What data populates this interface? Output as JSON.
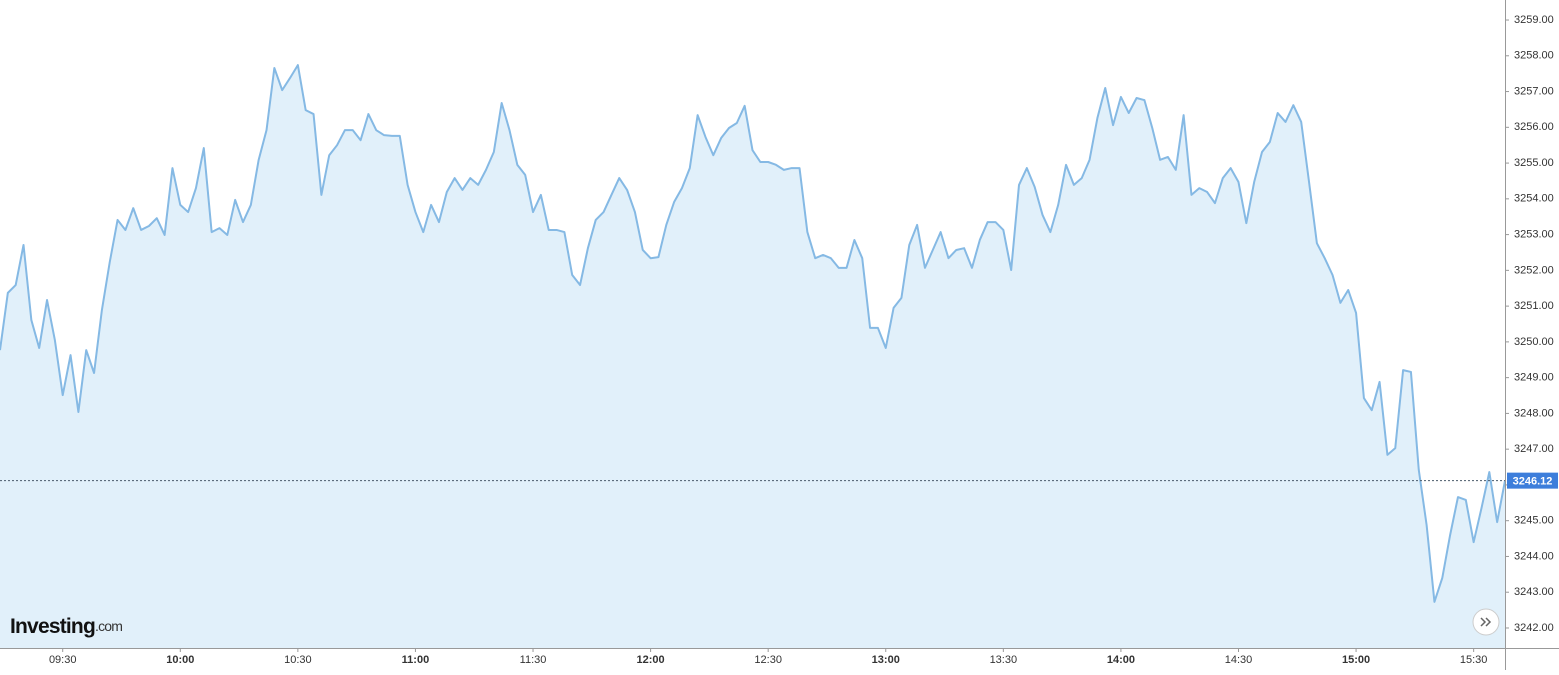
{
  "chart_data": {
    "type": "area",
    "logo": {
      "name": "Investing",
      "suffix": ".com"
    },
    "x": [
      "09:14",
      "09:16",
      "09:18",
      "09:20",
      "09:22",
      "09:24",
      "09:26",
      "09:28",
      "09:30",
      "09:32",
      "09:34",
      "09:36",
      "09:38",
      "09:40",
      "09:42",
      "09:44",
      "09:46",
      "09:48",
      "09:50",
      "09:52",
      "09:54",
      "09:56",
      "09:58",
      "10:00",
      "10:02",
      "10:04",
      "10:06",
      "10:08",
      "10:10",
      "10:12",
      "10:14",
      "10:16",
      "10:18",
      "10:20",
      "10:22",
      "10:24",
      "10:26",
      "10:28",
      "10:30",
      "10:32",
      "10:34",
      "10:36",
      "10:38",
      "10:40",
      "10:42",
      "10:44",
      "10:46",
      "10:48",
      "10:50",
      "10:52",
      "10:54",
      "10:56",
      "10:58",
      "11:00",
      "11:02",
      "11:04",
      "11:06",
      "11:08",
      "11:10",
      "11:12",
      "11:14",
      "11:16",
      "11:18",
      "11:20",
      "11:22",
      "11:24",
      "11:26",
      "11:28",
      "11:30",
      "11:32",
      "11:34",
      "11:36",
      "11:38",
      "11:40",
      "11:42",
      "11:44",
      "11:46",
      "11:48",
      "11:50",
      "11:52",
      "11:54",
      "11:56",
      "11:58",
      "12:00",
      "12:02",
      "12:04",
      "12:06",
      "12:08",
      "12:10",
      "12:12",
      "12:14",
      "12:16",
      "12:18",
      "12:20",
      "12:22",
      "12:24",
      "12:26",
      "12:28",
      "12:30",
      "12:32",
      "12:34",
      "12:36",
      "12:38",
      "12:40",
      "12:42",
      "12:44",
      "12:46",
      "12:48",
      "12:50",
      "12:52",
      "12:54",
      "12:56",
      "12:58",
      "13:00",
      "13:02",
      "13:04",
      "13:06",
      "13:08",
      "13:10",
      "13:12",
      "13:14",
      "13:16",
      "13:18",
      "13:20",
      "13:22",
      "13:24",
      "13:26",
      "13:28",
      "13:30",
      "13:32",
      "13:34",
      "13:36",
      "13:38",
      "13:40",
      "13:42",
      "13:44",
      "13:46",
      "13:48",
      "13:50",
      "13:52",
      "13:54",
      "13:56",
      "13:58",
      "14:00",
      "14:02",
      "14:04",
      "14:06",
      "14:08",
      "14:10",
      "14:12",
      "14:14",
      "14:16",
      "14:18",
      "14:20",
      "14:22",
      "14:24",
      "14:26",
      "14:28",
      "14:30",
      "14:32",
      "14:34",
      "14:36",
      "14:38",
      "14:40",
      "14:42",
      "14:44",
      "14:46",
      "14:48",
      "14:50",
      "14:52",
      "14:54",
      "14:56",
      "14:58",
      "15:00",
      "15:02",
      "15:04",
      "15:06",
      "15:08",
      "15:10",
      "15:12",
      "15:14",
      "15:16",
      "15:18",
      "15:20",
      "15:22",
      "15:24",
      "15:26",
      "15:28",
      "15:30",
      "15:32",
      "15:34",
      "15:36",
      "15:38"
    ],
    "values": [
      3249.77,
      3251.37,
      3251.59,
      3252.71,
      3250.61,
      3249.83,
      3251.17,
      3250.05,
      3248.51,
      3249.63,
      3248.04,
      3249.77,
      3249.13,
      3250.89,
      3252.23,
      3253.41,
      3253.13,
      3253.74,
      3253.13,
      3253.24,
      3253.46,
      3252.99,
      3254.86,
      3253.83,
      3253.63,
      3254.3,
      3255.42,
      3253.07,
      3253.18,
      3252.99,
      3253.97,
      3253.35,
      3253.83,
      3255.09,
      3255.92,
      3257.66,
      3257.04,
      3257.38,
      3257.74,
      3256.48,
      3256.37,
      3254.11,
      3255.22,
      3255.5,
      3255.92,
      3255.92,
      3255.64,
      3256.37,
      3255.92,
      3255.78,
      3255.76,
      3255.76,
      3254.39,
      3253.63,
      3253.07,
      3253.83,
      3253.35,
      3254.19,
      3254.58,
      3254.25,
      3254.58,
      3254.39,
      3254.81,
      3255.31,
      3256.68,
      3255.92,
      3254.95,
      3254.67,
      3253.63,
      3254.11,
      3253.13,
      3253.13,
      3253.07,
      3251.87,
      3251.59,
      3252.62,
      3253.41,
      3253.63,
      3254.11,
      3254.58,
      3254.25,
      3253.63,
      3252.57,
      3252.34,
      3252.37,
      3253.27,
      3253.91,
      3254.3,
      3254.86,
      3256.34,
      3255.73,
      3255.22,
      3255.7,
      3255.98,
      3256.12,
      3256.6,
      3255.36,
      3255.03,
      3255.03,
      3254.95,
      3254.81,
      3254.86,
      3254.86,
      3253.07,
      3252.34,
      3252.43,
      3252.34,
      3252.07,
      3252.07,
      3252.85,
      3252.34,
      3250.39,
      3250.39,
      3249.83,
      3250.95,
      3251.23,
      3252.71,
      3253.27,
      3252.07,
      3252.57,
      3253.07,
      3252.34,
      3252.57,
      3252.62,
      3252.07,
      3252.85,
      3253.35,
      3253.35,
      3253.13,
      3252.01,
      3254.39,
      3254.86,
      3254.33,
      3253.55,
      3253.07,
      3253.83,
      3254.95,
      3254.39,
      3254.58,
      3255.09,
      3256.26,
      3257.1,
      3256.06,
      3256.85,
      3256.4,
      3256.82,
      3256.76,
      3255.98,
      3255.09,
      3255.17,
      3254.81,
      3256.34,
      3254.11,
      3254.3,
      3254.19,
      3253.88,
      3254.58,
      3254.86,
      3254.47,
      3253.32,
      3254.47,
      3255.31,
      3255.59,
      3256.4,
      3256.15,
      3256.62,
      3256.15,
      3254.47,
      3252.76,
      3252.34,
      3251.87,
      3251.09,
      3251.45,
      3250.81,
      3248.43,
      3248.09,
      3248.88,
      3246.84,
      3247.03,
      3249.21,
      3249.16,
      3246.42,
      3244.88,
      3242.73,
      3243.4,
      3244.6,
      3245.66,
      3245.58,
      3244.4,
      3245.35,
      3246.36,
      3244.96,
      3246.12
    ],
    "last_price": 3246.12,
    "line_color": "#85b9e4",
    "fill_color": "#e1f0fa",
    "price_box_color": "#3d7edb",
    "xlim": [
      "09:14",
      "15:38"
    ],
    "xticks": [
      "09:30",
      "10:00",
      "10:30",
      "11:00",
      "11:30",
      "12:00",
      "12:30",
      "13:00",
      "13:30",
      "14:00",
      "14:30",
      "15:00",
      "15:30"
    ],
    "ylim": [
      3241.44,
      3259.56
    ],
    "yticks": [
      {
        "value": 3242,
        "label": "3242.00"
      },
      {
        "value": 3243,
        "label": "3243.00"
      },
      {
        "value": 3244,
        "label": "3244.00"
      },
      {
        "value": 3245,
        "label": "3245.00"
      },
      {
        "value": 3246,
        "label": "3246.00"
      },
      {
        "value": 3247,
        "label": "3247.00"
      },
      {
        "value": 3248,
        "label": "3248.00"
      },
      {
        "value": 3249,
        "label": "3249.00"
      },
      {
        "value": 3250,
        "label": "3250.00"
      },
      {
        "value": 3251,
        "label": "3251.00"
      },
      {
        "value": 3252,
        "label": "3252.00"
      },
      {
        "value": 3253,
        "label": "3253.00"
      },
      {
        "value": 3254,
        "label": "3254.00"
      },
      {
        "value": 3255,
        "label": "3255.00"
      },
      {
        "value": 3256,
        "label": "3256.00"
      },
      {
        "value": 3257,
        "label": "3257.00"
      },
      {
        "value": 3258,
        "label": "3258.00"
      },
      {
        "value": 3259,
        "label": "3259.00"
      }
    ]
  }
}
